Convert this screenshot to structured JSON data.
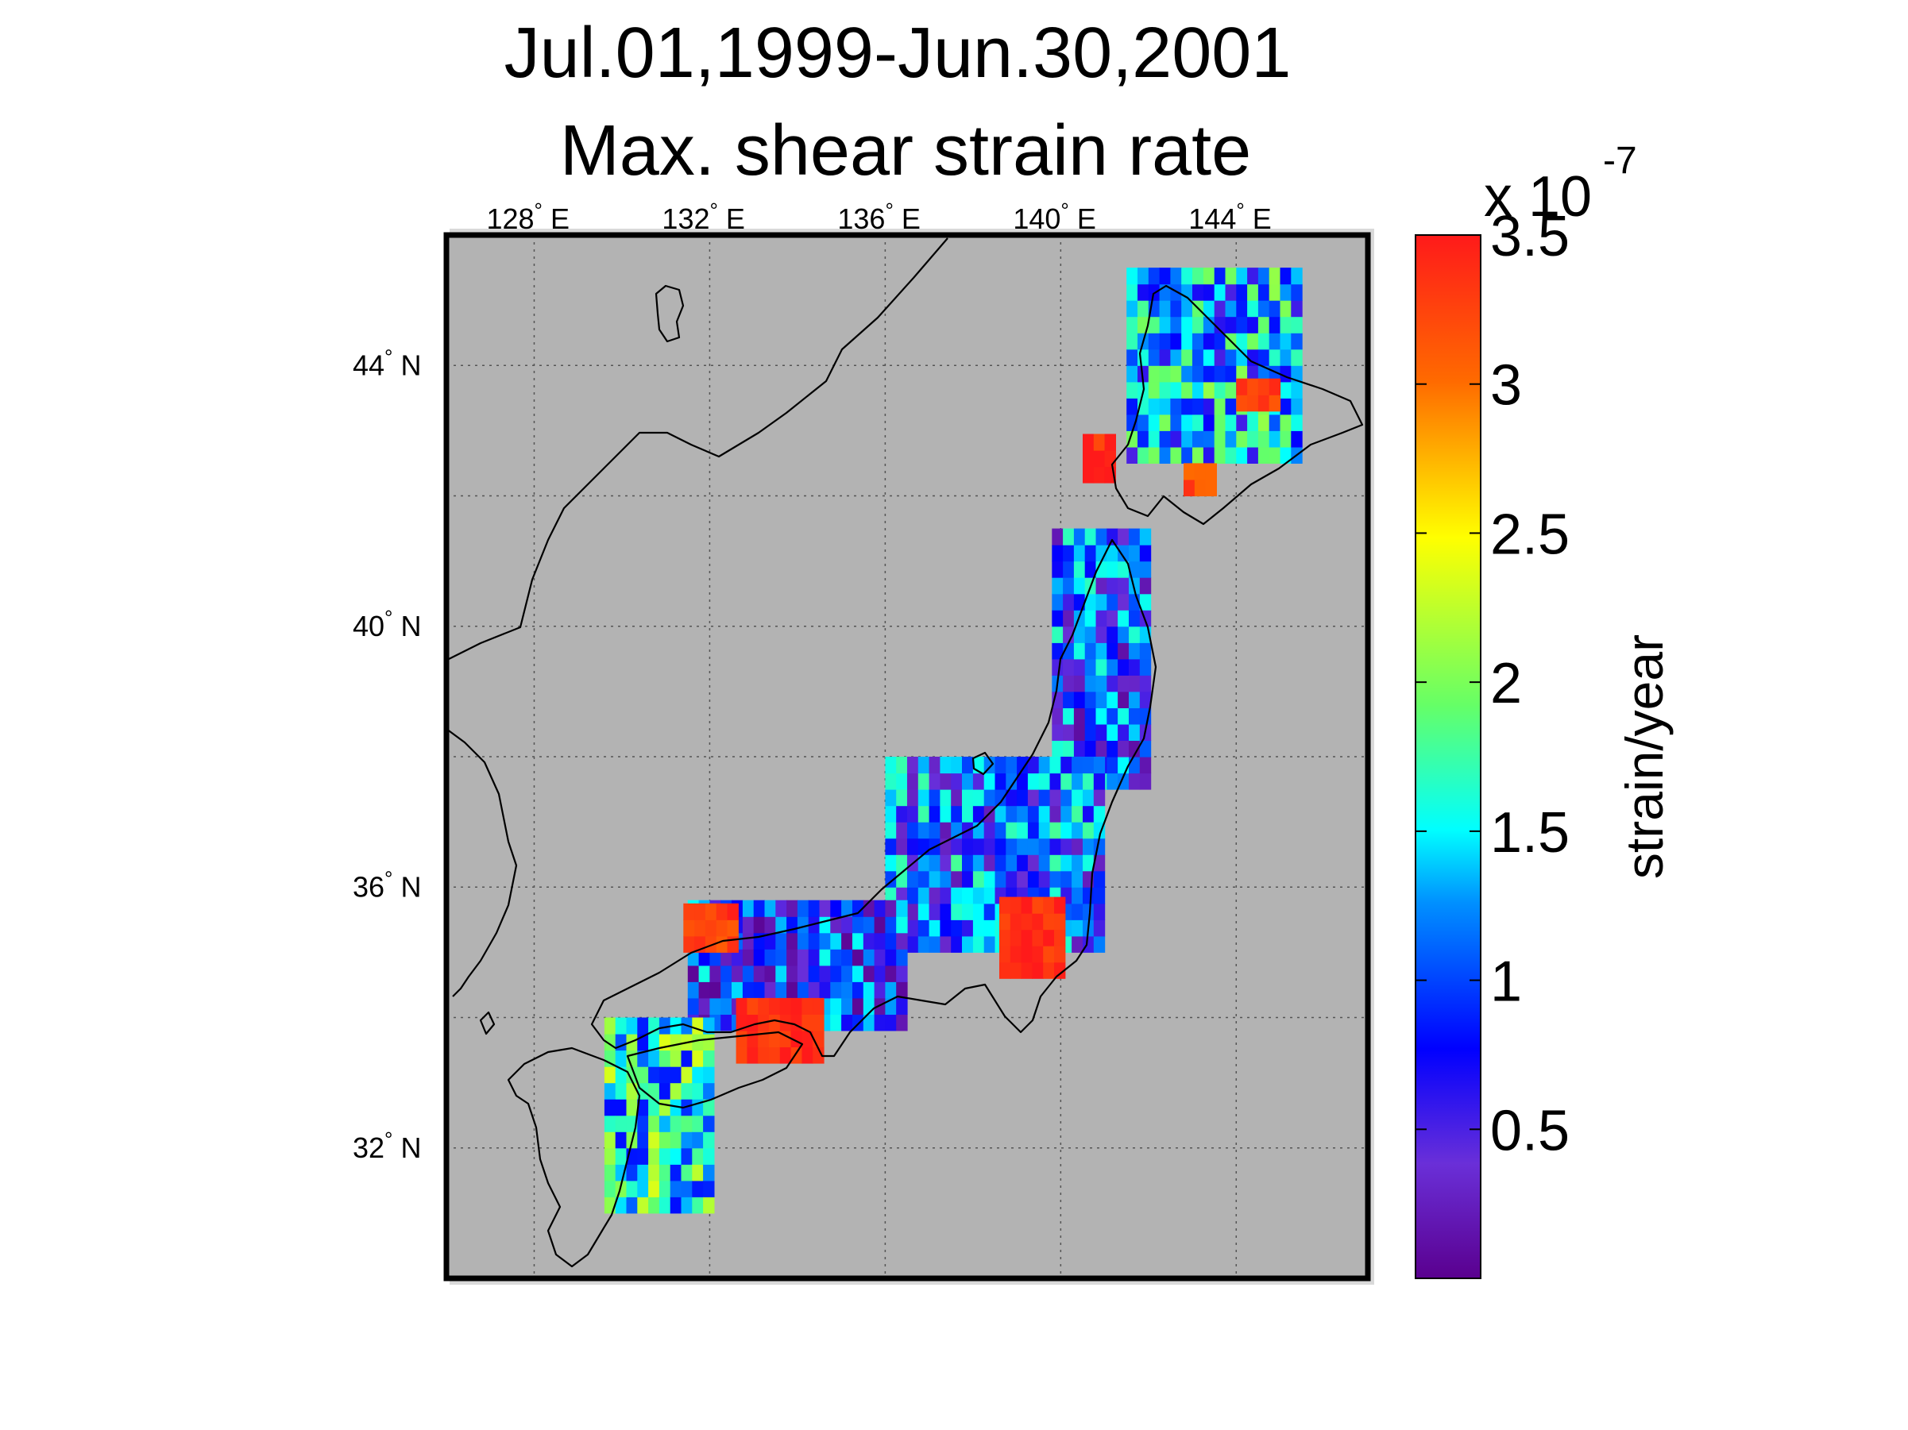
{
  "title": {
    "line1": "Jul.01,1999-Jun.30,2001",
    "line2": "Max. shear strain rate"
  },
  "map": {
    "lon_range": [
      126,
      147
    ],
    "lat_range": [
      30,
      46
    ],
    "background_color": "#b3b3b3",
    "grid": true,
    "lon_ticks": [
      {
        "value": 128,
        "deg": "128",
        "suffix": "E"
      },
      {
        "value": 132,
        "deg": "132",
        "suffix": "E"
      },
      {
        "value": 136,
        "deg": "136",
        "suffix": "E"
      },
      {
        "value": 140,
        "deg": "140",
        "suffix": "E"
      },
      {
        "value": 144,
        "deg": "144",
        "suffix": "E"
      }
    ],
    "lat_ticks": [
      {
        "value": 44,
        "deg": "44",
        "suffix": "N"
      },
      {
        "value": 40,
        "deg": "40",
        "suffix": "N"
      },
      {
        "value": 36,
        "deg": "36",
        "suffix": "N"
      },
      {
        "value": 32,
        "deg": "32",
        "suffix": "N"
      }
    ]
  },
  "colorbar": {
    "colormap": "jet",
    "range": [
      0,
      3.5
    ],
    "exponent_prefix": "x 10",
    "exponent": "-7",
    "ticks": [
      {
        "value": 3.5,
        "label": "3.5"
      },
      {
        "value": 3,
        "label": "3"
      },
      {
        "value": 2.5,
        "label": "2.5"
      },
      {
        "value": 2,
        "label": "2"
      },
      {
        "value": 1.5,
        "label": "1.5"
      },
      {
        "value": 1,
        "label": "1"
      },
      {
        "value": 0.5,
        "label": "0.5"
      }
    ],
    "label": "strain/year"
  },
  "chart_data": {
    "type": "heatmap",
    "variable": "maximum shear strain rate",
    "units_multiplier": 1e-07,
    "regions": [
      {
        "name": "hokkaido-north",
        "lon": [
          141.5,
          145.5
        ],
        "lat": [
          42.5,
          45.4
        ],
        "value": 1.3
      },
      {
        "name": "hokkaido-east-red",
        "lon": [
          144.0,
          144.8
        ],
        "lat": [
          43.3,
          43.8
        ],
        "value": 3.3
      },
      {
        "name": "hokkaido-southwest-red",
        "lon": [
          140.5,
          141.2
        ],
        "lat": [
          42.2,
          42.9
        ],
        "value": 3.4
      },
      {
        "name": "hokkaido-south-red",
        "lon": [
          142.8,
          143.4
        ],
        "lat": [
          42.0,
          42.4
        ],
        "value": 3.2
      },
      {
        "name": "tohoku",
        "lon": [
          139.8,
          141.9
        ],
        "lat": [
          37.5,
          41.5
        ],
        "value": 0.9
      },
      {
        "name": "chubu-kanto",
        "lon": [
          136.0,
          140.8
        ],
        "lat": [
          35.0,
          37.8
        ],
        "value": 1.0
      },
      {
        "name": "izu-tokai-red",
        "lon": [
          138.6,
          140.0
        ],
        "lat": [
          34.6,
          35.8
        ],
        "value": 3.4
      },
      {
        "name": "kinki-chugoku",
        "lon": [
          131.5,
          136.5
        ],
        "lat": [
          33.8,
          35.8
        ],
        "value": 0.8
      },
      {
        "name": "chugoku-west-red",
        "lon": [
          131.4,
          132.6
        ],
        "lat": [
          35.0,
          35.6
        ],
        "value": 3.3
      },
      {
        "name": "shikoku-south-red",
        "lon": [
          132.6,
          134.6
        ],
        "lat": [
          33.3,
          34.3
        ],
        "value": 3.4
      },
      {
        "name": "kyushu",
        "lon": [
          129.6,
          131.9
        ],
        "lat": [
          31.0,
          34.0
        ],
        "value": 1.6
      }
    ]
  }
}
